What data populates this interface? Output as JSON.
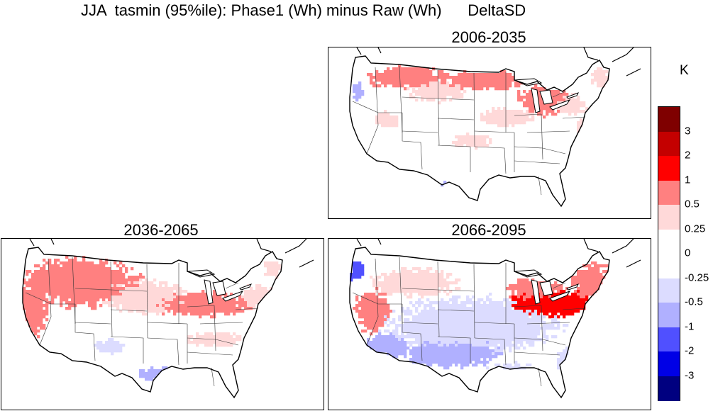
{
  "title": "JJA  tasmin (95%ile): Phase1 (Wh) minus Raw (Wh)      DeltaSD",
  "panels": [
    {
      "label": "2006-2035",
      "id": "p1"
    },
    {
      "label": "2036-2065",
      "id": "p2"
    },
    {
      "label": "2066-2095",
      "id": "p3"
    }
  ],
  "colorbar": {
    "unit": "K",
    "labels": [
      "3",
      "2",
      "1",
      "0.5",
      "0.25",
      "0",
      "-0.25",
      "-0.5",
      "-1",
      "-2",
      "-3"
    ],
    "colors": [
      "#7f0000",
      "#c40000",
      "#ff0000",
      "#ff8080",
      "#ffd9d9",
      "#ffffff",
      "#ffffff",
      "#dcdcff",
      "#b0b0ff",
      "#5050ff",
      "#0000e6",
      "#000080"
    ]
  }
}
